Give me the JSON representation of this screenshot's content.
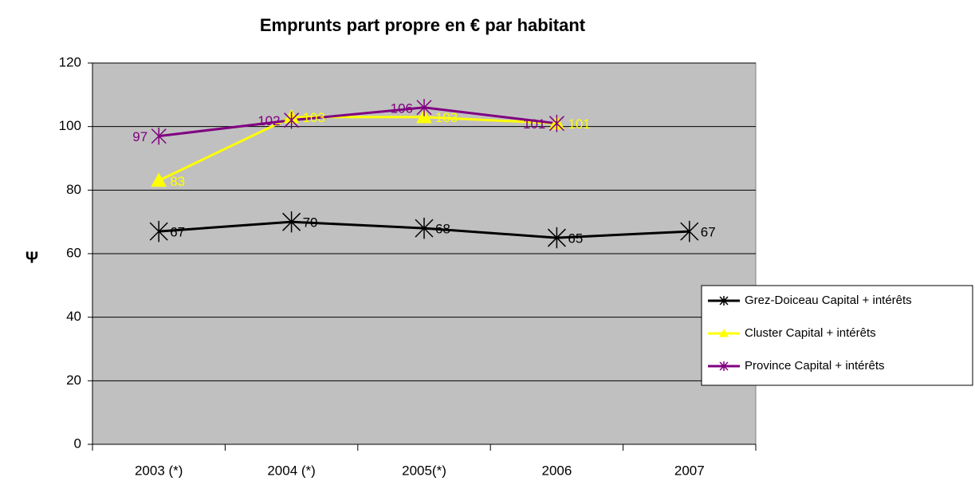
{
  "chart_data": {
    "type": "line",
    "title": "Emprunts part propre en  € par habitant",
    "y_label": "Ψ",
    "categories": [
      "2003 (*)",
      "2004 (*)",
      "2005(*)",
      "2006",
      "2007"
    ],
    "series": [
      {
        "name": "Grez-Doiceau Capital + intérêts",
        "color": "#000000",
        "marker": "star",
        "values": [
          67,
          70,
          68,
          65,
          67
        ]
      },
      {
        "name": "Cluster Capital + intérêts",
        "color": "#ffff00",
        "marker": "triangle",
        "values": [
          83,
          103,
          103,
          101,
          null
        ]
      },
      {
        "name": "Province Capital + intérêts",
        "color": "#800080",
        "marker": "star",
        "values": [
          97,
          102,
          106,
          101,
          null
        ]
      }
    ],
    "ylim": [
      0,
      120
    ],
    "yticks": [
      0,
      20,
      40,
      60,
      80,
      100,
      120
    ],
    "grid": true,
    "plot_background": "#c0c0c0",
    "legend": "right"
  }
}
